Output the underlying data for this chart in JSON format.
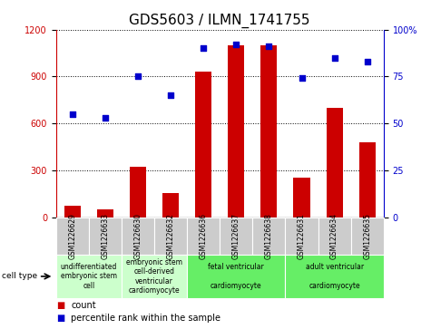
{
  "title": "GDS5603 / ILMN_1741755",
  "samples": [
    "GSM1226629",
    "GSM1226633",
    "GSM1226630",
    "GSM1226632",
    "GSM1226636",
    "GSM1226637",
    "GSM1226638",
    "GSM1226631",
    "GSM1226634",
    "GSM1226635"
  ],
  "counts": [
    75,
    50,
    320,
    155,
    930,
    1100,
    1100,
    250,
    700,
    480
  ],
  "percentiles": [
    55,
    53,
    75,
    65,
    90,
    92,
    91,
    74,
    85,
    83
  ],
  "ylim_left": [
    0,
    1200
  ],
  "ylim_right": [
    0,
    100
  ],
  "yticks_left": [
    0,
    300,
    600,
    900,
    1200
  ],
  "yticks_right": [
    0,
    25,
    50,
    75,
    100
  ],
  "bar_color": "#cc0000",
  "dot_color": "#0000cc",
  "grid_color": "#000000",
  "cell_types": [
    {
      "label": "undifferentiated\nembryonic stem\ncell",
      "spans": [
        0,
        2
      ],
      "color": "#ccffcc"
    },
    {
      "label": "embryonic stem\ncell-derived\nventricular\ncardiomyocyte",
      "spans": [
        2,
        4
      ],
      "color": "#ccffcc"
    },
    {
      "label": "fetal ventricular\n\ncardiomyocyte",
      "spans": [
        4,
        7
      ],
      "color": "#66ee66"
    },
    {
      "label": "adult ventricular\n\ncardiomyocyte",
      "spans": [
        7,
        10
      ],
      "color": "#66ee66"
    }
  ],
  "sample_bg_color": "#cccccc",
  "legend_count_color": "#cc0000",
  "legend_pct_color": "#0000cc",
  "cell_type_label": "cell type",
  "legend_count_label": "count",
  "legend_pct_label": "percentile rank within the sample",
  "title_fontsize": 11,
  "tick_fontsize": 7,
  "sample_fontsize": 5.5,
  "cell_type_fontsize": 5.5,
  "legend_fontsize": 7
}
